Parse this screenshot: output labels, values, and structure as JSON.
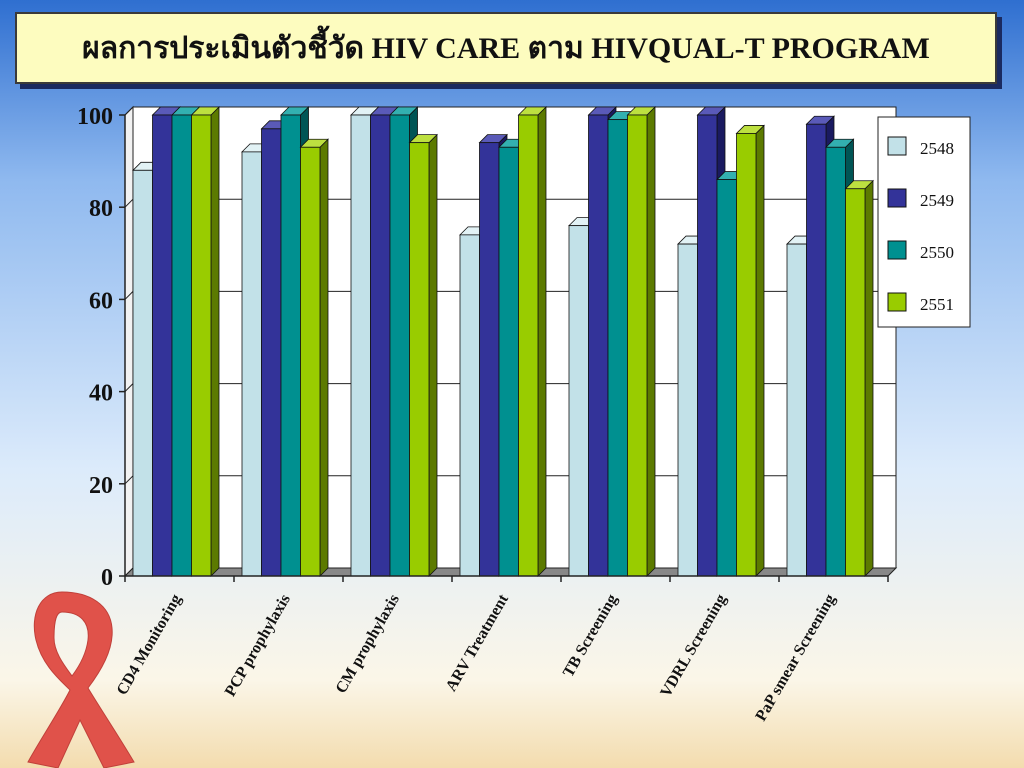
{
  "slide": {
    "title": "ผลการประเมินตัวชี้วัด HIV CARE ตาม HIVQUAL-T PROGRAM"
  },
  "colors": {
    "series": [
      "#c2e1e8",
      "#333399",
      "#009090",
      "#99cc00"
    ],
    "series_side": [
      "#7fa7b0",
      "#1a1a60",
      "#005555",
      "#5c7a00"
    ],
    "series_top": [
      "#e2f2f5",
      "#5a5ab8",
      "#33b0b0",
      "#bde040"
    ],
    "ribbon": "#e0524a"
  },
  "chart_data": {
    "type": "bar",
    "categories": [
      "CD4 Monitoring",
      "PCP prophylaxis",
      "CM prophylaxis",
      "ARV Treatment",
      "TB Screening",
      "VDRL Screening",
      "PaP smear Screening"
    ],
    "series": [
      {
        "name": "2548",
        "values": [
          88,
          92,
          100,
          74,
          76,
          72,
          72
        ]
      },
      {
        "name": "2549",
        "values": [
          100,
          97,
          100,
          94,
          100,
          100,
          98
        ]
      },
      {
        "name": "2550",
        "values": [
          100,
          100,
          100,
          93,
          99,
          86,
          93
        ]
      },
      {
        "name": "2551",
        "values": [
          100,
          93,
          94,
          100,
          100,
          96,
          84
        ]
      }
    ],
    "title": "ผลการประเมินตัวชี้วัด HIV CARE ตาม HIVQUAL-T PROGRAM",
    "ylim": [
      0,
      100
    ],
    "yticks": [
      "0",
      "20",
      "40",
      "60",
      "80",
      "100"
    ],
    "grid": true,
    "legend": "right"
  }
}
